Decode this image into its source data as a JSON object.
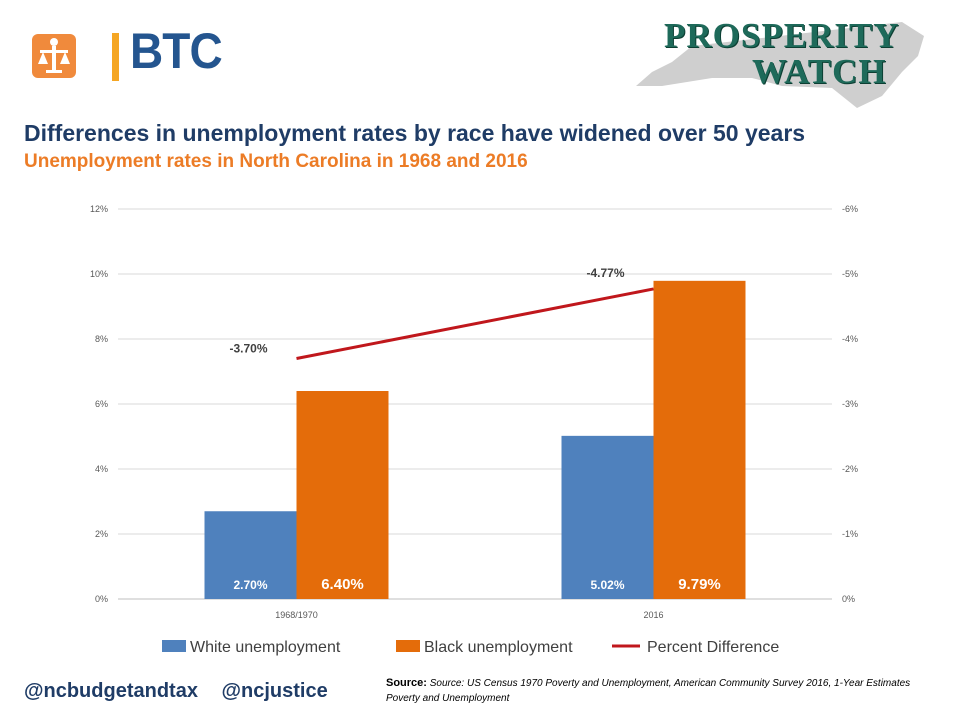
{
  "header": {
    "btc_logo_text": "BTC",
    "pw_line1": "PROSPERITY",
    "pw_line2": "WATCH",
    "title": "Differences in unemployment rates by race have widened over 50 years",
    "subtitle": "Unemployment rates in North Carolina in 1968 and 2016"
  },
  "colors": {
    "white_series": "#4f81bd",
    "black_series": "#e46c0a",
    "line_series": "#c0171c",
    "title": "#1f3c66",
    "subtitle": "#ec7c26"
  },
  "chart_data": {
    "type": "bar",
    "categories": [
      "1968/1970",
      "2016"
    ],
    "series": [
      {
        "name": "White unemployment",
        "type": "bar",
        "axis": "left",
        "values": [
          2.7,
          5.02
        ],
        "labels": [
          "2.70%",
          "5.02%"
        ]
      },
      {
        "name": "Black unemployment",
        "type": "bar",
        "axis": "left",
        "values": [
          6.4,
          9.79
        ],
        "labels": [
          "6.40%",
          "9.79%"
        ]
      },
      {
        "name": "Percent Difference",
        "type": "line",
        "axis": "right",
        "values": [
          -3.7,
          -4.77
        ],
        "labels": [
          "-3.70%",
          "-4.77%"
        ]
      }
    ],
    "left_axis": {
      "ticks": [
        "0%",
        "2%",
        "4%",
        "6%",
        "8%",
        "10%",
        "12%"
      ],
      "ylim": [
        0,
        12
      ]
    },
    "right_axis": {
      "ticks": [
        "0%",
        "-1%",
        "-2%",
        "-3%",
        "-4%",
        "-5%",
        "-6%"
      ],
      "ylim": [
        0,
        -6
      ]
    },
    "grid": true,
    "legend_position": "bottom"
  },
  "footer": {
    "handles": "@ncbudgetandtax @ncjustice",
    "source_label": "Source:",
    "source_text": "Source: US Census 1970 Poverty and Unemployment, American Community Survey 2016, 1-Year Estimates Poverty and Unemployment"
  }
}
